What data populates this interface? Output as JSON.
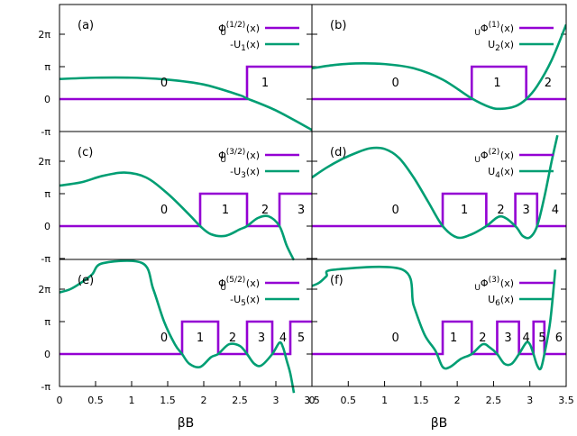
{
  "x_axis": {
    "label": "βB",
    "range": [
      0,
      3.5
    ],
    "left_ticks": [
      "0",
      "0.5",
      "1",
      "1.5",
      "2",
      "2.5",
      "3",
      "3.5"
    ],
    "right_ticks": [
      "0",
      "0.5",
      "1",
      "1.5",
      "2",
      "2.5",
      "3",
      "3.5"
    ]
  },
  "y_axis": {
    "range_pi_units": [
      -1.05,
      2.4
    ],
    "ticks": [
      {
        "value_pi": 2,
        "label": "2π"
      },
      {
        "value_pi": 1,
        "label": "π"
      },
      {
        "value_pi": 0,
        "label": "0"
      },
      {
        "value_pi": -1,
        "label": "-π"
      }
    ]
  },
  "colors": {
    "step": "#9400d3",
    "curve": "#009e73"
  },
  "chart_data": [
    {
      "type": "line",
      "panel": "(a)",
      "legend": [
        "Φ_U^(1/2)(x)",
        "-U_1(x)"
      ],
      "legend_main": [
        "Φ",
        "-U"
      ],
      "legend_sub": [
        "U",
        "1"
      ],
      "legend_sup": [
        "(1/2)",
        ""
      ],
      "legend_tail": [
        "(x)",
        "(x)"
      ],
      "region_labels": [
        {
          "text": "0",
          "x": 1.45
        },
        {
          "text": "1",
          "x": 2.85
        }
      ],
      "step_jumps": [
        2.6
      ],
      "step_values_pi": [
        0,
        1
      ],
      "curve": {
        "x": [
          0,
          0.5,
          1.0,
          1.5,
          2.0,
          2.5,
          2.6,
          3.0,
          3.5
        ],
        "y_pi": [
          0.62,
          0.66,
          0.66,
          0.6,
          0.45,
          0.12,
          0.02,
          -0.35,
          -0.95
        ]
      }
    },
    {
      "type": "line",
      "panel": "(b)",
      "legend": [
        "Φ_U^(1)(x)",
        "U_2(x)"
      ],
      "legend_main": [
        "Φ",
        "U"
      ],
      "legend_sub": [
        "U",
        "2"
      ],
      "legend_sup": [
        "(1)",
        ""
      ],
      "legend_tail": [
        "(x)",
        "(x)"
      ],
      "region_labels": [
        {
          "text": "0",
          "x": 1.15
        },
        {
          "text": "1",
          "x": 2.55
        },
        {
          "text": "2",
          "x": 3.25
        }
      ],
      "step_jumps": [
        2.2,
        2.95
      ],
      "step_values_pi": [
        0,
        1,
        0
      ],
      "curve": {
        "x": [
          0,
          0.3,
          0.6,
          1.0,
          1.4,
          1.8,
          2.2,
          2.45,
          2.6,
          2.8,
          2.95,
          3.1,
          3.3,
          3.5
        ],
        "y_pi": [
          0.95,
          1.05,
          1.1,
          1.08,
          0.95,
          0.6,
          0.02,
          -0.25,
          -0.3,
          -0.22,
          0.0,
          0.4,
          1.2,
          2.3
        ]
      }
    },
    {
      "type": "line",
      "panel": "(c)",
      "legend": [
        "Φ_U^(3/2)(x)",
        "-U_3(x)"
      ],
      "legend_main": [
        "Φ",
        "-U"
      ],
      "legend_sub": [
        "U",
        "3"
      ],
      "legend_sup": [
        "(3/2)",
        ""
      ],
      "legend_tail": [
        "(x)",
        "(x)"
      ],
      "region_labels": [
        {
          "text": "0",
          "x": 1.45
        },
        {
          "text": "1",
          "x": 2.3
        },
        {
          "text": "2",
          "x": 2.85
        },
        {
          "text": "3",
          "x": 3.35
        }
      ],
      "step_jumps": [
        1.95,
        2.6,
        3.05
      ],
      "step_values_pi": [
        0,
        1,
        0,
        1
      ],
      "curve": {
        "x": [
          0,
          0.3,
          0.6,
          0.9,
          1.2,
          1.5,
          1.8,
          1.95,
          2.1,
          2.3,
          2.5,
          2.6,
          2.75,
          2.9,
          3.05,
          3.15,
          3.25
        ],
        "y_pi": [
          1.25,
          1.35,
          1.55,
          1.65,
          1.5,
          1.0,
          0.35,
          0.0,
          -0.25,
          -0.3,
          -0.1,
          0.0,
          0.25,
          0.3,
          0.0,
          -0.6,
          -1.05
        ]
      }
    },
    {
      "type": "line",
      "panel": "(d)",
      "legend": [
        "Φ_U^(2)(x)",
        "U_4(x)"
      ],
      "legend_main": [
        "Φ",
        "U"
      ],
      "legend_sub": [
        "U",
        "4"
      ],
      "legend_sup": [
        "(2)",
        ""
      ],
      "legend_tail": [
        "(x)",
        "(x)"
      ],
      "region_labels": [
        {
          "text": "0",
          "x": 1.15
        },
        {
          "text": "1",
          "x": 2.1
        },
        {
          "text": "2",
          "x": 2.6
        },
        {
          "text": "3",
          "x": 2.95
        },
        {
          "text": "4",
          "x": 3.35
        }
      ],
      "step_jumps": [
        1.8,
        2.4,
        2.8,
        3.1
      ],
      "step_values_pi": [
        0,
        1,
        0,
        1,
        0
      ],
      "curve": {
        "x": [
          0,
          0.2,
          0.4,
          0.6,
          0.8,
          1.0,
          1.2,
          1.4,
          1.6,
          1.8,
          2.0,
          2.2,
          2.4,
          2.6,
          2.8,
          2.9,
          3.0,
          3.1,
          3.2,
          3.3,
          3.38
        ],
        "y_pi": [
          1.5,
          1.8,
          2.05,
          2.25,
          2.4,
          2.38,
          2.1,
          1.5,
          0.75,
          0.0,
          -0.35,
          -0.25,
          0.0,
          0.3,
          0.0,
          -0.3,
          -0.35,
          0.0,
          0.9,
          2.0,
          2.8
        ]
      }
    },
    {
      "type": "line",
      "panel": "(e)",
      "legend": [
        "Φ_U^(5/2)(x)",
        "-U_5(x)"
      ],
      "legend_main": [
        "Φ",
        "-U"
      ],
      "legend_sub": [
        "U",
        "5"
      ],
      "legend_sup": [
        "(5/2)",
        ""
      ],
      "legend_tail": [
        "(x)",
        "(x)"
      ],
      "region_labels": [
        {
          "text": "0",
          "x": 1.45
        },
        {
          "text": "1",
          "x": 1.95
        },
        {
          "text": "2",
          "x": 2.4
        },
        {
          "text": "3",
          "x": 2.8
        },
        {
          "text": "4",
          "x": 3.1
        },
        {
          "text": "5",
          "x": 3.35
        }
      ],
      "step_jumps": [
        1.7,
        2.2,
        2.6,
        2.95,
        3.2
      ],
      "step_values_pi": [
        0,
        1,
        0,
        1,
        0,
        1
      ],
      "curve": {
        "x": [
          0,
          0.15,
          0.3,
          0.45,
          0.6,
          1.15,
          1.3,
          1.45,
          1.6,
          1.7,
          1.8,
          1.95,
          2.1,
          2.2,
          2.35,
          2.5,
          2.6,
          2.7,
          2.8,
          2.95,
          3.05,
          3.1,
          3.15,
          3.2,
          3.25
        ],
        "y_pi": [
          1.9,
          2.0,
          2.2,
          2.45,
          2.8,
          2.8,
          2.0,
          1.0,
          0.3,
          0.0,
          -0.3,
          -0.4,
          -0.1,
          0.0,
          0.3,
          0.25,
          0.0,
          -0.3,
          -0.35,
          0.0,
          0.35,
          0.2,
          -0.2,
          -0.6,
          -1.2
        ]
      }
    },
    {
      "type": "line",
      "panel": "(f)",
      "legend": [
        "Φ_U^(3)(x)",
        "U_6(x)"
      ],
      "legend_main": [
        "Φ",
        "U"
      ],
      "legend_sub": [
        "U",
        "6"
      ],
      "legend_sup": [
        "(3)",
        ""
      ],
      "legend_tail": [
        "(x)",
        "(x)"
      ],
      "region_labels": [
        {
          "text": "0",
          "x": 1.15
        },
        {
          "text": "1",
          "x": 1.95
        },
        {
          "text": "2",
          "x": 2.35
        },
        {
          "text": "3",
          "x": 2.7
        },
        {
          "text": "4",
          "x": 2.95
        },
        {
          "text": "5",
          "x": 3.17
        },
        {
          "text": "6",
          "x": 3.4
        }
      ],
      "step_jumps": [
        1.8,
        2.2,
        2.55,
        2.85,
        3.05,
        3.2
      ],
      "step_values_pi": [
        0,
        1,
        0,
        1,
        0,
        1,
        0
      ],
      "curve": {
        "x": [
          0,
          0.1,
          0.2,
          0.3,
          1.25,
          1.4,
          1.55,
          1.7,
          1.8,
          1.9,
          2.05,
          2.2,
          2.35,
          2.45,
          2.55,
          2.65,
          2.75,
          2.85,
          2.95,
          3.0,
          3.05,
          3.1,
          3.15,
          3.2,
          3.28,
          3.35
        ],
        "y_pi": [
          2.1,
          2.2,
          2.4,
          2.6,
          2.6,
          1.5,
          0.6,
          0.1,
          -0.4,
          -0.4,
          -0.15,
          0.0,
          0.3,
          0.2,
          0.0,
          -0.3,
          -0.3,
          0.0,
          0.35,
          0.3,
          0.0,
          -0.35,
          -0.45,
          0.0,
          1.0,
          2.6
        ]
      }
    }
  ]
}
